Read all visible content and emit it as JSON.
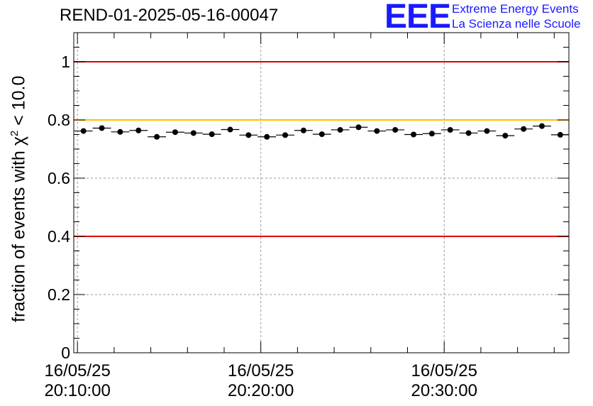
{
  "header": {
    "title": "REND-01-2025-05-16-00047",
    "logo_mark": "EEE",
    "logo_line1": "Extreme Energy Events",
    "logo_line2": "La Scienza nelle Scuole"
  },
  "colors": {
    "limit_red": "#e00000",
    "reference_yellow": "#ffc000",
    "points": "#000000",
    "logo": "#1a1aff"
  },
  "chart_data": {
    "type": "scatter",
    "title": "REND-01-2025-05-16-00047",
    "ylabel_prefix": "fraction of events with ",
    "ylabel_symbol": "χ",
    "ylabel_sup": "2",
    "ylabel_suffix": " < 10.0",
    "xlabel": "",
    "x_unit": "minutes after 16/05/25 20:10:00",
    "xlim": [
      -0.2,
      26.8
    ],
    "ylim": [
      0,
      1.1
    ],
    "yticks": [
      0,
      0.2,
      0.4,
      0.6,
      0.8,
      1
    ],
    "ytick_labels": [
      "0",
      "0.2",
      "0.4",
      "0.6",
      "0.8",
      "1"
    ],
    "xticks": [
      {
        "x": 0,
        "date": "16/05/25",
        "time": "20:10:00"
      },
      {
        "x": 10,
        "date": "16/05/25",
        "time": "20:20:00"
      },
      {
        "x": 20,
        "date": "16/05/25",
        "time": "20:30:00"
      }
    ],
    "grid": true,
    "hlines": [
      {
        "y": 1.0,
        "color": "red"
      },
      {
        "y": 0.8,
        "color": "yellow"
      },
      {
        "y": 0.4,
        "color": "red"
      }
    ],
    "bin_width": 1,
    "series": [
      {
        "x": [
          0.33,
          1.33,
          2.33,
          3.33,
          4.33,
          5.33,
          6.33,
          7.33,
          8.33,
          9.33,
          10.33,
          11.33,
          12.33,
          13.33,
          14.33,
          15.33,
          16.33,
          17.33,
          18.33,
          19.33,
          20.33,
          21.33,
          22.33,
          23.33,
          24.33,
          25.33,
          26.33
        ],
        "y": [
          0.762,
          0.772,
          0.759,
          0.764,
          0.742,
          0.758,
          0.755,
          0.751,
          0.767,
          0.748,
          0.742,
          0.748,
          0.764,
          0.751,
          0.766,
          0.775,
          0.762,
          0.766,
          0.75,
          0.753,
          0.766,
          0.755,
          0.762,
          0.746,
          0.769,
          0.779,
          0.749
        ],
        "yerr": 0.006
      }
    ]
  }
}
